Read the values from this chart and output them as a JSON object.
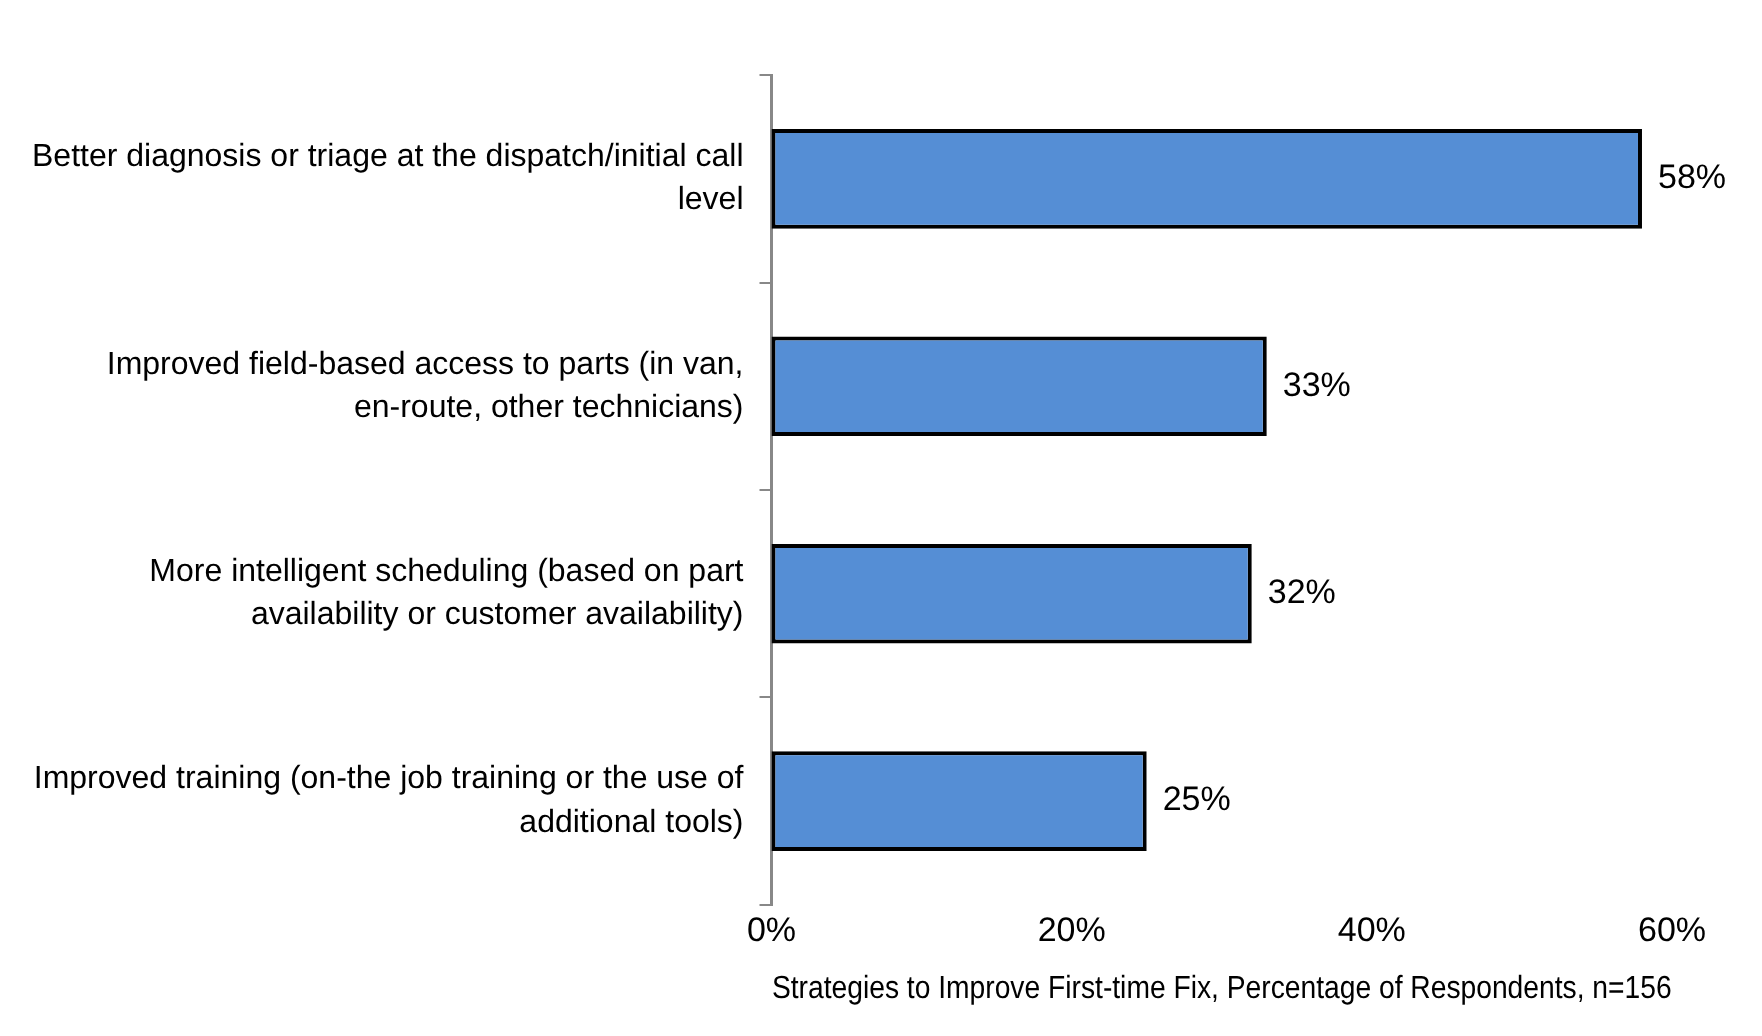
{
  "chart_data": {
    "type": "bar",
    "orientation": "horizontal",
    "xlabel": "Strategies to Improve First-time Fix, Percentage of Respondents, n=156",
    "categories": [
      "Better diagnosis or triage at the dispatch/initial call level",
      "Improved field-based access to parts (in van, en-route, other technicians)",
      "More intelligent scheduling (based on part availability or customer availability)",
      "Improved training (on-the job training or the use of additional tools)"
    ],
    "values": [
      58,
      33,
      32,
      25
    ],
    "value_labels": [
      "58%",
      "33%",
      "32%",
      "25%"
    ],
    "color": "#558ed5",
    "xlim": [
      0,
      60
    ],
    "xticks": [
      {
        "value": 0,
        "label": "0%"
      },
      {
        "value": 20,
        "label": "20%"
      },
      {
        "value": 40,
        "label": "40%"
      },
      {
        "value": 60,
        "label": "60%"
      }
    ],
    "grid": false,
    "legend": false
  }
}
